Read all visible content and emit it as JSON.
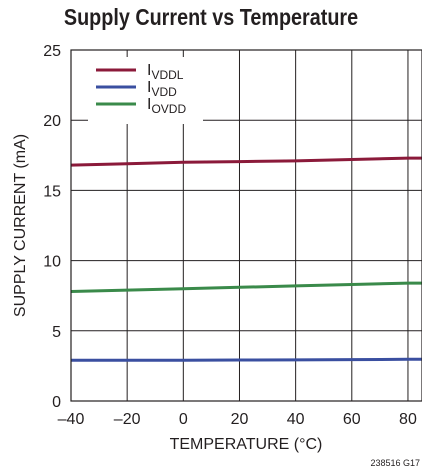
{
  "chart_data": {
    "type": "line",
    "title": "Supply Current vs Temperature",
    "xlabel": "TEMPERATURE (°C)",
    "ylabel": "SUPPLY CURRENT (mA)",
    "xlim": [
      -40,
      85
    ],
    "ylim": [
      0,
      25
    ],
    "xticks": [
      -40,
      -20,
      0,
      20,
      40,
      60,
      80
    ],
    "yticks": [
      0,
      5,
      10,
      15,
      20,
      25
    ],
    "grid": true,
    "legend_position": "top-left",
    "x": [
      -40,
      -20,
      0,
      20,
      40,
      60,
      80,
      85
    ],
    "series": [
      {
        "name": "I",
        "subscript": "VDDL",
        "color": "#8b1a3a",
        "values": [
          16.8,
          16.9,
          17.0,
          17.05,
          17.1,
          17.2,
          17.3,
          17.3
        ]
      },
      {
        "name": "I",
        "subscript": "VDD",
        "color": "#3a4fa0",
        "values": [
          2.9,
          2.9,
          2.9,
          2.92,
          2.93,
          2.95,
          2.97,
          2.97
        ]
      },
      {
        "name": "I",
        "subscript": "OVDD",
        "color": "#3a8a4a",
        "values": [
          7.8,
          7.9,
          8.0,
          8.1,
          8.2,
          8.3,
          8.4,
          8.4
        ]
      }
    ],
    "figure_id": "238516 G17"
  }
}
